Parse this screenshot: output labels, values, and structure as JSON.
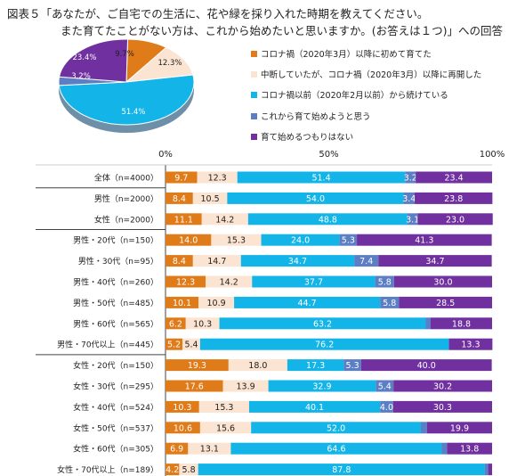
{
  "title": {
    "line1": "図表５「あなたが、ご自宅での生活に、花や緑を採り入れた時期を教えてください。",
    "line2": "また育てたことがない方は、これから始めたいと思いますか。(お答えは１つ)」への回答"
  },
  "colors": [
    "#e07b1a",
    "#fbe4d2",
    "#13b4e8",
    "#5b7ec4",
    "#7030a0"
  ],
  "chart_data": [
    {
      "type": "pie",
      "slices": [
        {
          "label": "9.7%",
          "value": 9.7
        },
        {
          "label": "12.3%",
          "value": 12.3
        },
        {
          "label": "51.4%",
          "value": 51.4
        },
        {
          "label": "3.2%",
          "value": 3.2
        },
        {
          "label": "23.4%",
          "value": 23.4
        }
      ]
    },
    {
      "type": "bar",
      "orientation": "horizontal",
      "stacked": true,
      "axis_ticks": [
        "0%",
        "50%",
        "100%"
      ],
      "xlim": [
        0,
        100
      ],
      "legend": [
        "コロナ禍（2020年3月）以降に初めて育てた",
        "中断していたが、コロナ禍（2020年3月）以降に再開した",
        "コロナ禍以前（2020年2月以前）から続けている",
        "これから育て始めようと思う",
        "育て始めるつもりはない"
      ],
      "categories": [
        "全体（n=4000）",
        "男性（n=2000）",
        "女性（n=2000）",
        "男性・20代（n=150）",
        "男性・30代（n=95）",
        "男性・40代（n=260）",
        "男性・50代（n=485）",
        "男性・60代（n=565）",
        "男性・70代以上（n=445）",
        "女性・20代（n=150）",
        "女性・30代（n=295）",
        "女性・40代（n=524）",
        "女性・50代（n=537）",
        "女性・60代（n=305）",
        "女性・70代以上（n=189）"
      ],
      "rows": [
        {
          "values": [
            9.7,
            12.3,
            51.4,
            3.2,
            23.4
          ],
          "labels": [
            "9.7",
            "12.3",
            "51.4",
            "3.2",
            "23.4"
          ]
        },
        {
          "values": [
            8.4,
            10.5,
            54.0,
            3.4,
            23.8
          ],
          "labels": [
            "8.4",
            "10.5",
            "54.0",
            "3.4",
            "23.8"
          ]
        },
        {
          "values": [
            11.1,
            14.2,
            48.8,
            3.1,
            23.0
          ],
          "labels": [
            "11.1",
            "14.2",
            "48.8",
            "3.1",
            "23.0"
          ]
        },
        {
          "values": [
            14.0,
            15.3,
            24.0,
            5.3,
            41.3
          ],
          "labels": [
            "14.0",
            "15.3",
            "24.0",
            "5.3",
            "41.3"
          ]
        },
        {
          "values": [
            8.4,
            14.7,
            34.7,
            7.4,
            34.7
          ],
          "labels": [
            "8.4",
            "14.7",
            "34.7",
            "7.4",
            "34.7"
          ]
        },
        {
          "values": [
            12.3,
            14.2,
            37.7,
            5.8,
            30.0
          ],
          "labels": [
            "12.3",
            "14.2",
            "37.7",
            "5.8",
            "30.0"
          ]
        },
        {
          "values": [
            10.1,
            10.9,
            44.7,
            5.8,
            28.5
          ],
          "labels": [
            "10.1",
            "10.9",
            "44.7",
            "5.8",
            "28.5"
          ]
        },
        {
          "values": [
            6.2,
            10.3,
            63.2,
            1.5,
            18.8
          ],
          "labels": [
            "6.2",
            "10.3",
            "63.2",
            "",
            "18.8"
          ]
        },
        {
          "values": [
            5.2,
            5.4,
            76.2,
            0,
            13.3
          ],
          "labels": [
            "5.2",
            "5.4",
            "76.2",
            "",
            "13.3"
          ]
        },
        {
          "values": [
            19.3,
            18.0,
            17.3,
            5.3,
            40.0
          ],
          "labels": [
            "19.3",
            "18.0",
            "17.3",
            "5.3",
            "40.0"
          ]
        },
        {
          "values": [
            17.6,
            13.9,
            32.9,
            5.4,
            30.2
          ],
          "labels": [
            "17.6",
            "13.9",
            "32.9",
            "5.4",
            "30.2"
          ]
        },
        {
          "values": [
            10.3,
            15.3,
            40.1,
            4.0,
            30.3
          ],
          "labels": [
            "10.3",
            "15.3",
            "40.1",
            "4.0",
            "30.3"
          ]
        },
        {
          "values": [
            10.6,
            15.6,
            52.0,
            1.9,
            19.9
          ],
          "labels": [
            "10.6",
            "15.6",
            "52.0",
            "",
            "19.9"
          ]
        },
        {
          "values": [
            6.9,
            13.1,
            64.6,
            1.6,
            13.8
          ],
          "labels": [
            "6.9",
            "13.1",
            "64.6",
            "",
            "13.8"
          ]
        },
        {
          "values": [
            4.2,
            5.8,
            87.8,
            1.0,
            1.2
          ],
          "labels": [
            "4.2",
            "5.8",
            "87.8",
            "",
            ""
          ]
        }
      ],
      "group_dividers_after": [
        0,
        2,
        8
      ]
    }
  ]
}
